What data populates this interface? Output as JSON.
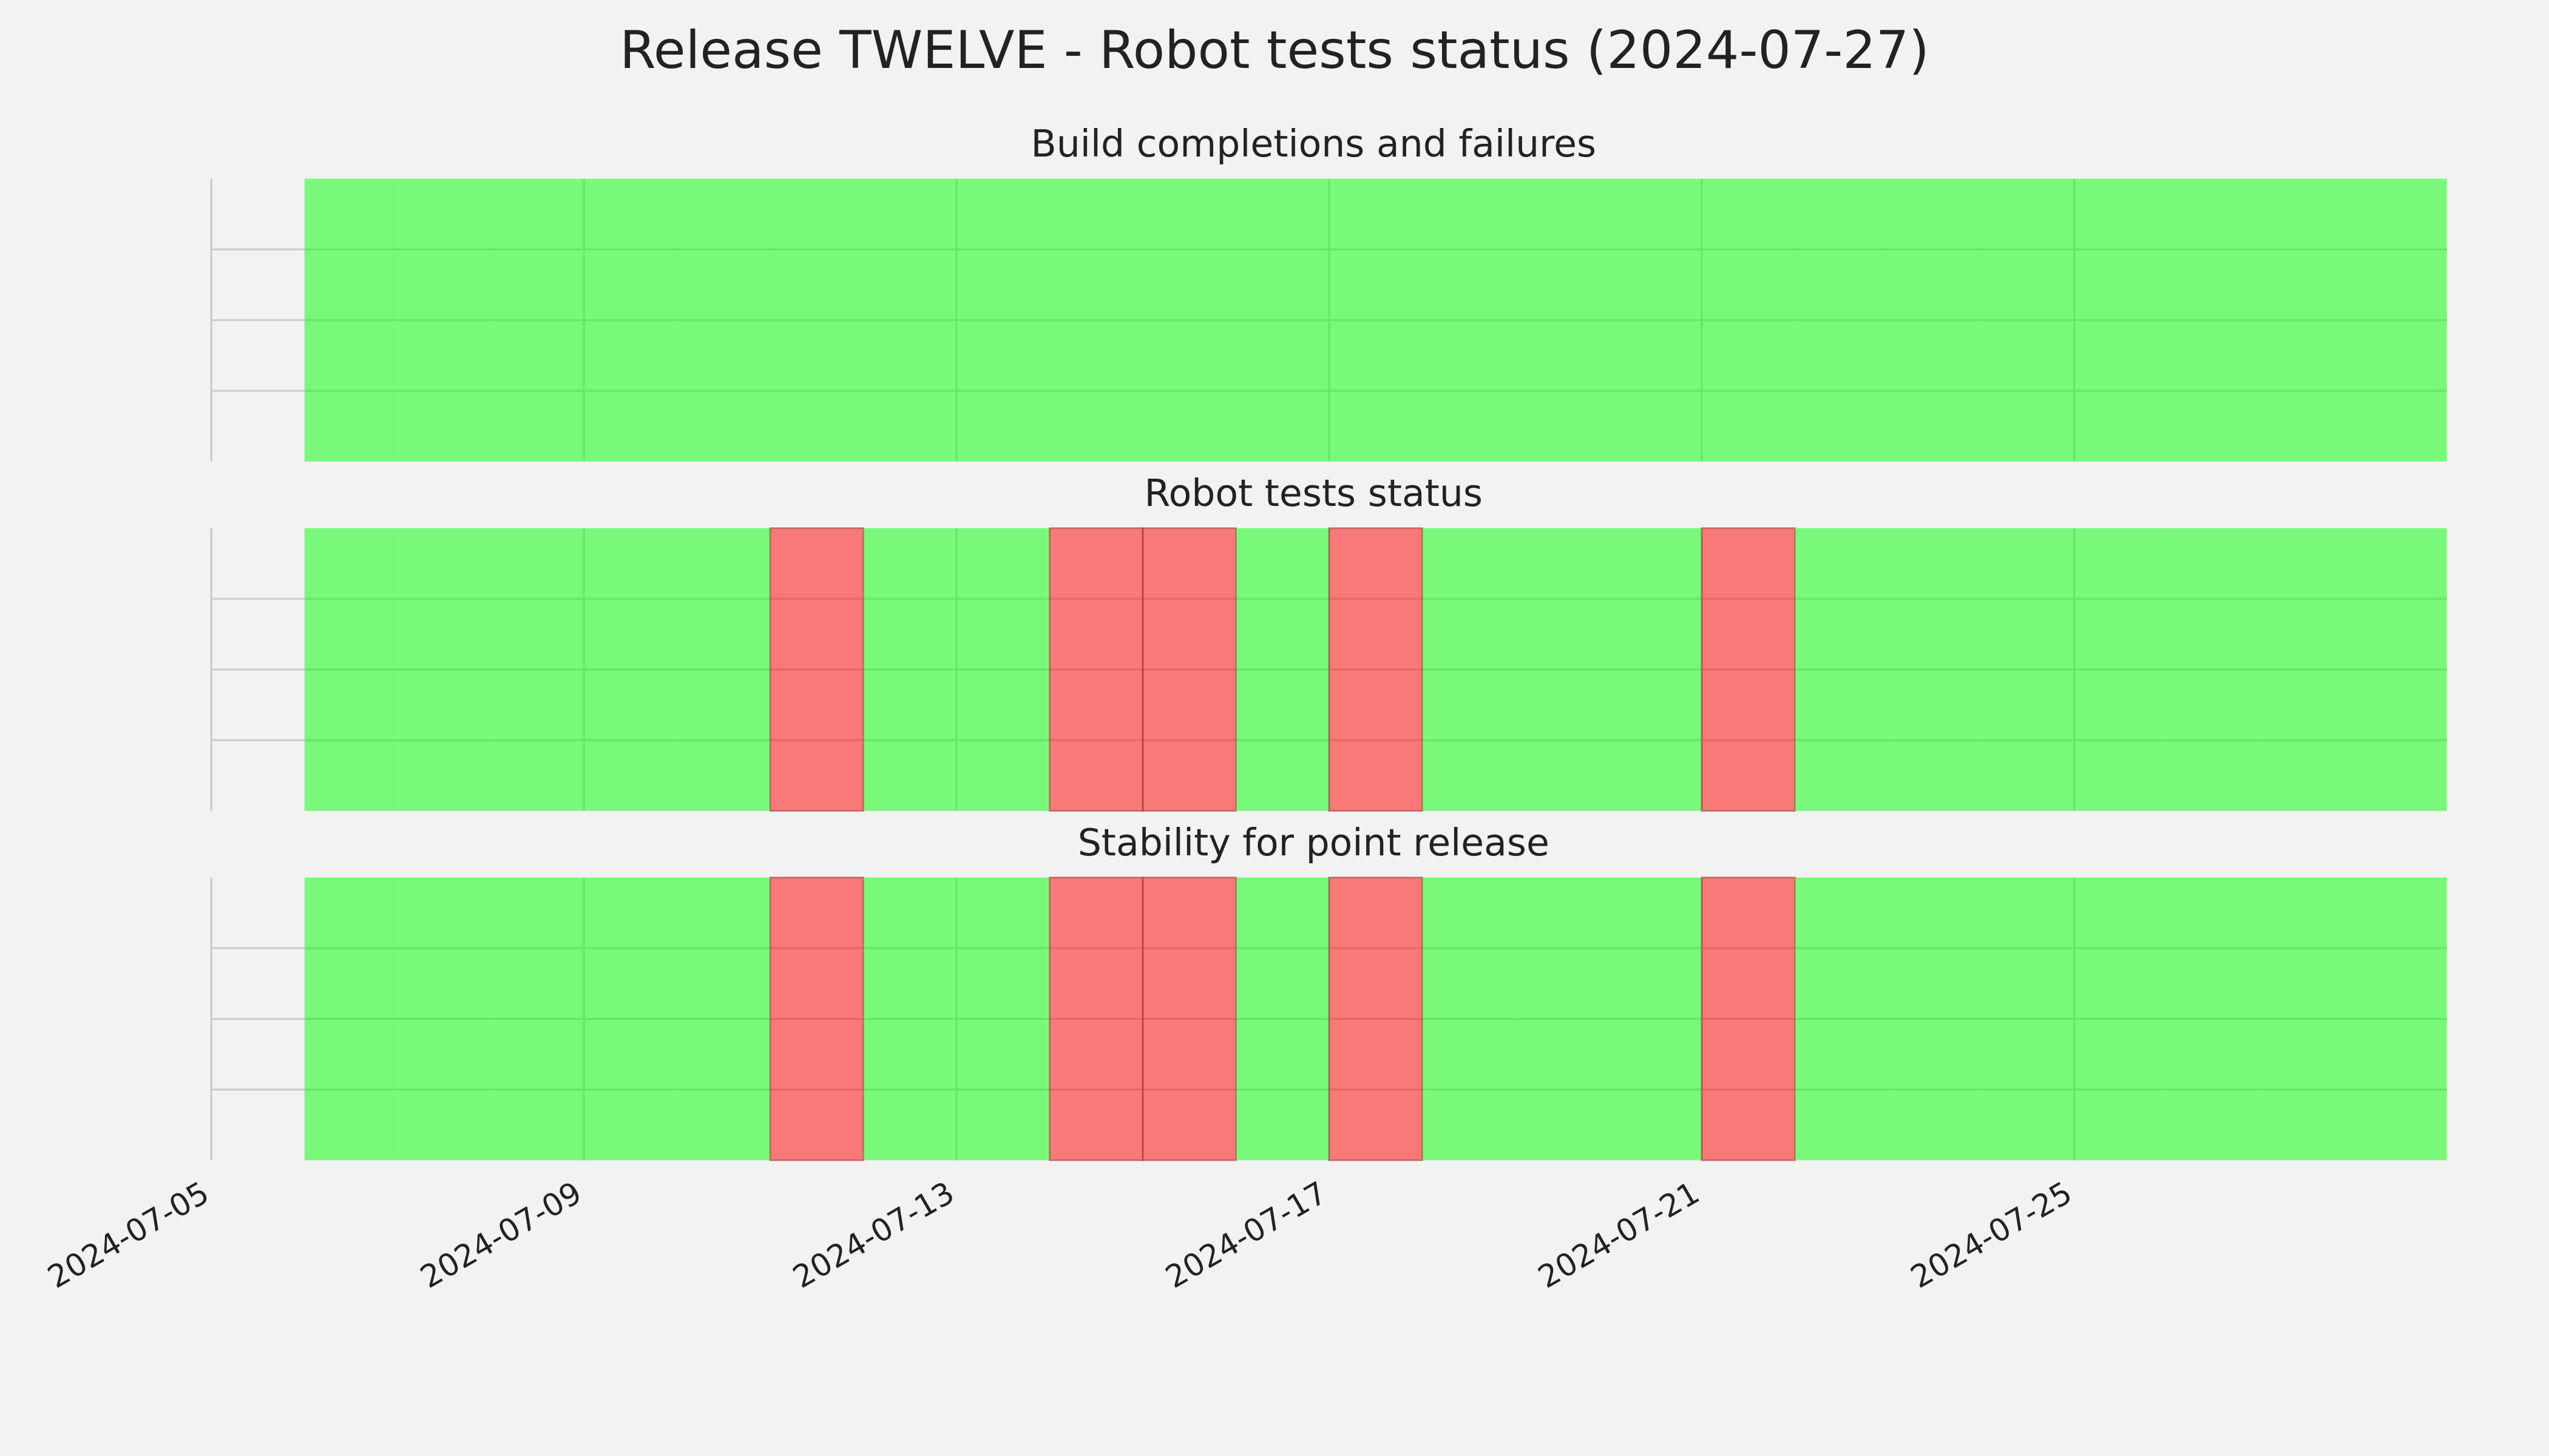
{
  "chart_data": {
    "type": "status-timeline",
    "title": "Release TWELVE - Robot tests status (2024-07-27)",
    "x": [
      "2024-07-06",
      "2024-07-07",
      "2024-07-08",
      "2024-07-09",
      "2024-07-10",
      "2024-07-11",
      "2024-07-12",
      "2024-07-13",
      "2024-07-14",
      "2024-07-15",
      "2024-07-16",
      "2024-07-17",
      "2024-07-18",
      "2024-07-19",
      "2024-07-20",
      "2024-07-21",
      "2024-07-22",
      "2024-07-23",
      "2024-07-24",
      "2024-07-25",
      "2024-07-26",
      "2024-07-27"
    ],
    "xlim": [
      "2024-07-05",
      "2024-07-29"
    ],
    "xticks": [
      "2024-07-05",
      "2024-07-09",
      "2024-07-13",
      "2024-07-17",
      "2024-07-21",
      "2024-07-25"
    ],
    "pass_color": "#00ff00",
    "fail_color": "#ff0000",
    "grid": true,
    "panels": [
      {
        "title": "Build completions and failures",
        "values": [
          1,
          1,
          1,
          1,
          1,
          1,
          1,
          1,
          1,
          1,
          1,
          1,
          1,
          1,
          1,
          1,
          1,
          1,
          1,
          1,
          1,
          1
        ]
      },
      {
        "title": "Robot tests status",
        "values": [
          1,
          1,
          1,
          1,
          1,
          0,
          1,
          1,
          0,
          0,
          1,
          0,
          1,
          1,
          1,
          0,
          1,
          1,
          1,
          1,
          1,
          1
        ]
      },
      {
        "title": "Stability for point release",
        "values": [
          1,
          1,
          1,
          1,
          1,
          0,
          1,
          1,
          0,
          0,
          1,
          0,
          1,
          1,
          1,
          0,
          1,
          1,
          1,
          1,
          1,
          1
        ]
      }
    ]
  }
}
